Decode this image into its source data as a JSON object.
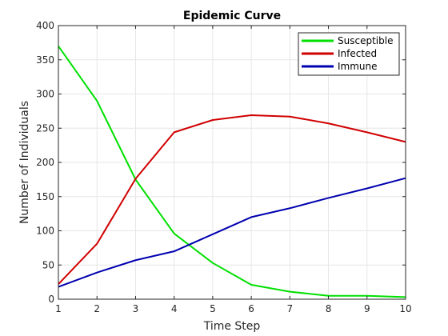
{
  "chart_data": {
    "type": "line",
    "title": "Epidemic Curve",
    "xlabel": "Time Step",
    "ylabel": "Number of Individuals",
    "x": [
      1,
      2,
      3,
      4,
      5,
      6,
      7,
      8,
      9,
      10
    ],
    "xlim": [
      1,
      10
    ],
    "ylim": [
      0,
      400
    ],
    "xticks": [
      "1",
      "2",
      "3",
      "4",
      "5",
      "6",
      "7",
      "8",
      "9",
      "10"
    ],
    "yticks": [
      "0",
      "50",
      "100",
      "150",
      "200",
      "250",
      "300",
      "350",
      "400"
    ],
    "grid": true,
    "legend_position": "top-right",
    "series": [
      {
        "name": "Susceptible",
        "color": "#00e000",
        "values": [
          370,
          290,
          175,
          96,
          53,
          21,
          11,
          5,
          5,
          3
        ]
      },
      {
        "name": "Infected",
        "color": "#d00000",
        "values": [
          22,
          81,
          176,
          244,
          262,
          269,
          267,
          257,
          244,
          230
        ]
      },
      {
        "name": "Immune",
        "color": "#0000b0",
        "values": [
          18,
          39,
          57,
          70,
          95,
          120,
          133,
          148,
          162,
          177
        ]
      }
    ]
  }
}
